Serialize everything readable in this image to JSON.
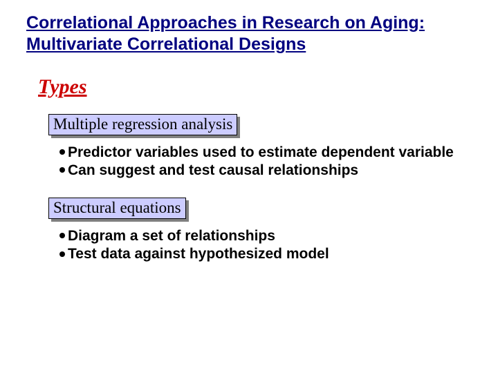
{
  "colors": {
    "title_color": "#000080",
    "types_color": "#cc0000",
    "box_fill": "#ccccff",
    "box_border": "#000000",
    "box_shadow": "#808080",
    "bullet_text": "#000000",
    "background": "#ffffff"
  },
  "typography": {
    "title_font": "Arial",
    "title_size_pt": 19,
    "title_weight": "bold",
    "types_font": "Times New Roman",
    "types_size_pt": 22,
    "types_style": "italic bold underline",
    "box_font": "Times New Roman",
    "box_size_pt": 17,
    "bullet_font": "Arial",
    "bullet_size_pt": 16,
    "bullet_weight": "bold"
  },
  "title": {
    "line1": "Correlational Approaches in Research on Aging:",
    "line2": "Multivariate Correlational Designs"
  },
  "types_heading": "Types",
  "section1": {
    "box_label": "Multiple regression analysis",
    "bullets": [
      "Predictor variables used to estimate dependent variable",
      "Can suggest and test causal relationships"
    ]
  },
  "section2": {
    "box_label": "Structural equations",
    "bullets": [
      "Diagram a set of relationships",
      "Test data against hypothesized model"
    ]
  }
}
